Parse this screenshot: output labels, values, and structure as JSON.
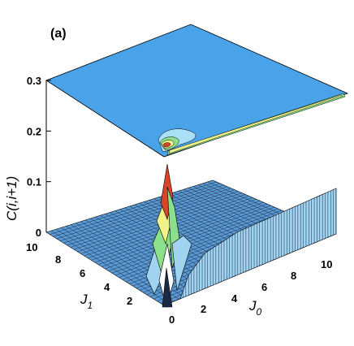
{
  "chart_data": {
    "type": "surface",
    "panel_label": "(a)",
    "zlabel": "C(i,i+1)",
    "zlim": [
      0,
      0.3
    ],
    "z_ticks": [
      "0",
      "0.1",
      "0.2",
      "0.3"
    ],
    "x_axis": {
      "label_main": "J",
      "label_sub": "0",
      "range": [
        0,
        10
      ],
      "ticks": [
        "0",
        "2",
        "4",
        "6",
        "8",
        "10"
      ]
    },
    "y_axis": {
      "label_main": "J",
      "label_sub": "1",
      "range": [
        0,
        10
      ],
      "ticks": [
        "2",
        "4",
        "6",
        "8",
        "10"
      ]
    },
    "peak": {
      "J0": 0.3,
      "J1": 0.3,
      "C": 0.21
    },
    "ridge_along_J0": {
      "J1": 0.1,
      "C_rise": [
        [
          0.5,
          0.0
        ],
        [
          1.0,
          0.04
        ],
        [
          2.0,
          0.07
        ],
        [
          4.0,
          0.085
        ],
        [
          10.0,
          0.09
        ]
      ]
    },
    "plateau_value": 0.0,
    "contour_levels": [
      0.05,
      0.1,
      0.15,
      0.2
    ],
    "colors": {
      "surface_base": "#5b9bd5",
      "surface_light": "#9fd3f0",
      "mesh": "#1a2a44",
      "contour_fill": "#4aa3e8",
      "green": "#8be08b",
      "yellow": "#f2f28a",
      "red": "#d9452b"
    }
  }
}
